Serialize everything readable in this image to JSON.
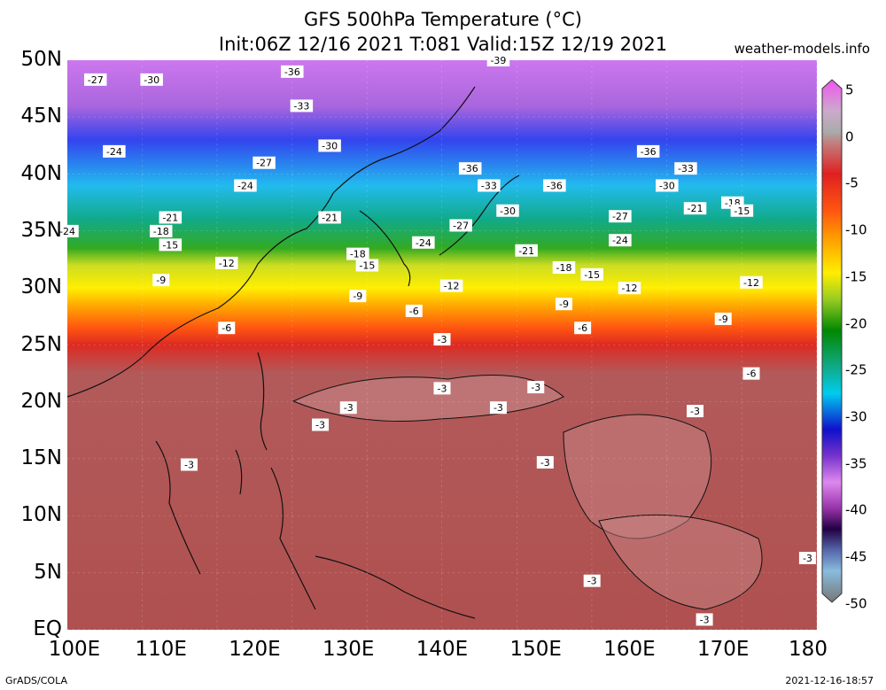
{
  "title": {
    "line1": "GFS 500hPa Temperature (°C)",
    "line2": "Init:06Z 12/16 2021 T:081 Valid:15Z 12/19 2021"
  },
  "site": "weather-models.info",
  "latitude_labels": [
    "50N",
    "45N",
    "40N",
    "35N",
    "30N",
    "25N",
    "20N",
    "15N",
    "10N",
    "5N",
    "EQ"
  ],
  "longitude_labels": [
    "100E",
    "110E",
    "120E",
    "130E",
    "140E",
    "150E",
    "160E",
    "170E",
    "180"
  ],
  "colorbar_labels": [
    "5",
    "0",
    "-5",
    "-10",
    "-15",
    "-20",
    "-25",
    "-30",
    "-35",
    "-40",
    "-45",
    "-50"
  ],
  "contour_labels": [
    {
      "text": "-39",
      "lon": 146,
      "lat": 50
    },
    {
      "text": "-27",
      "lon": 103,
      "lat": 48.3
    },
    {
      "text": "-30",
      "lon": 109,
      "lat": 48.3
    },
    {
      "text": "-36",
      "lon": 124,
      "lat": 49
    },
    {
      "text": "-33",
      "lon": 125,
      "lat": 46
    },
    {
      "text": "-30",
      "lon": 128,
      "lat": 42.5
    },
    {
      "text": "-24",
      "lon": 105,
      "lat": 42
    },
    {
      "text": "-27",
      "lon": 121,
      "lat": 41
    },
    {
      "text": "-24",
      "lon": 119,
      "lat": 39
    },
    {
      "text": "-36",
      "lon": 143,
      "lat": 40.5
    },
    {
      "text": "-33",
      "lon": 145,
      "lat": 39
    },
    {
      "text": "-36",
      "lon": 152,
      "lat": 39
    },
    {
      "text": "-36",
      "lon": 162,
      "lat": 42
    },
    {
      "text": "-33",
      "lon": 166,
      "lat": 40.5
    },
    {
      "text": "-30",
      "lon": 164,
      "lat": 39
    },
    {
      "text": "-21",
      "lon": 111,
      "lat": 36.2
    },
    {
      "text": "-18",
      "lon": 110,
      "lat": 35
    },
    {
      "text": "-21",
      "lon": 128,
      "lat": 36.2
    },
    {
      "text": "-30",
      "lon": 147,
      "lat": 36.8
    },
    {
      "text": "-27",
      "lon": 142,
      "lat": 35.5
    },
    {
      "text": "-27",
      "lon": 159,
      "lat": 36.3
    },
    {
      "text": "-21",
      "lon": 167,
      "lat": 37
    },
    {
      "text": "-18",
      "lon": 171,
      "lat": 37.5
    },
    {
      "text": "-15",
      "lon": 172,
      "lat": 36.8
    },
    {
      "text": "-24",
      "lon": 100,
      "lat": 35
    },
    {
      "text": "-15",
      "lon": 111,
      "lat": 33.8
    },
    {
      "text": "-24",
      "lon": 138,
      "lat": 34
    },
    {
      "text": "-24",
      "lon": 159,
      "lat": 34.2
    },
    {
      "text": "-21",
      "lon": 149,
      "lat": 33.3
    },
    {
      "text": "-18",
      "lon": 131,
      "lat": 33
    },
    {
      "text": "-15",
      "lon": 132,
      "lat": 32
    },
    {
      "text": "-12",
      "lon": 117,
      "lat": 32.2
    },
    {
      "text": "-18",
      "lon": 153,
      "lat": 31.8
    },
    {
      "text": "-15",
      "lon": 156,
      "lat": 31.2
    },
    {
      "text": "-9",
      "lon": 110,
      "lat": 30.7
    },
    {
      "text": "-12",
      "lon": 141,
      "lat": 30.2
    },
    {
      "text": "-12",
      "lon": 160,
      "lat": 30
    },
    {
      "text": "-12",
      "lon": 173,
      "lat": 30.5
    },
    {
      "text": "-9",
      "lon": 131,
      "lat": 29.3
    },
    {
      "text": "-6",
      "lon": 137,
      "lat": 28
    },
    {
      "text": "-9",
      "lon": 153,
      "lat": 28.6
    },
    {
      "text": "-9",
      "lon": 170,
      "lat": 27.3
    },
    {
      "text": "-6",
      "lon": 117,
      "lat": 26.5
    },
    {
      "text": "-6",
      "lon": 155,
      "lat": 26.5
    },
    {
      "text": "-3",
      "lon": 140,
      "lat": 25.5
    },
    {
      "text": "-6",
      "lon": 173,
      "lat": 22.5
    },
    {
      "text": "-3",
      "lon": 140,
      "lat": 21.2
    },
    {
      "text": "-3",
      "lon": 150,
      "lat": 21.3
    },
    {
      "text": "-3",
      "lon": 130,
      "lat": 19.5
    },
    {
      "text": "-3",
      "lon": 146,
      "lat": 19.5
    },
    {
      "text": "-3",
      "lon": 167,
      "lat": 19.2
    },
    {
      "text": "-3",
      "lon": 127,
      "lat": 18
    },
    {
      "text": "-3",
      "lon": 113,
      "lat": 14.5
    },
    {
      "text": "-3",
      "lon": 151,
      "lat": 14.7
    },
    {
      "text": "-3",
      "lon": 179,
      "lat": 6.3
    },
    {
      "text": "-3",
      "lon": 156,
      "lat": 4.3
    },
    {
      "text": "-3",
      "lon": 168,
      "lat": 0.9
    }
  ],
  "colors": {
    "warm_field": "#b25a5a",
    "warm_patch": "#c98a8a",
    "colorbar_stops": [
      "#ee55ee",
      "#aaaaaa",
      "#e02020",
      "#ff8c00",
      "#ffff00",
      "#008800",
      "#00aaee",
      "#1010cc",
      "#cc77dd",
      "#220044",
      "#88bbdd",
      "#888888"
    ]
  },
  "credit": "GrADS/COLA",
  "timestamp": "2021-12-16-18:57"
}
